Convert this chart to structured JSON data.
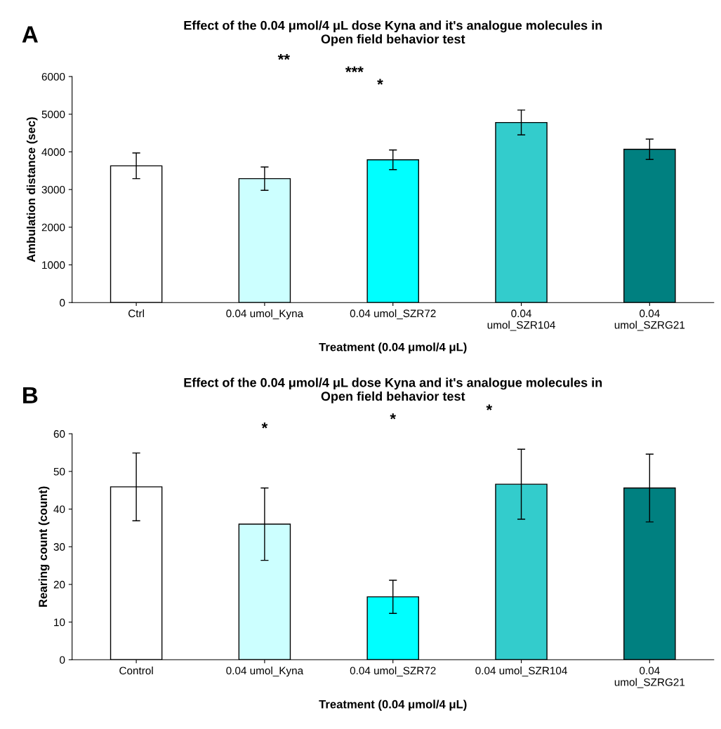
{
  "chart_data": [
    {
      "type": "bar",
      "title": "Effect of the 0.04 μmol/4 μL dose Kyna and it's analogue molecules in\nOpen field behavior test",
      "xlabel": "Treatment (0.04 μmol/4 μL)",
      "ylabel": "Ambulation distance (sec)",
      "categories": [
        "Ctrl",
        "0.04 umol_Kyna",
        "0.04 umol_SZR72",
        "0.04\numol_SZR104",
        "0.04\numol_SZRG21"
      ],
      "values": [
        3630,
        3290,
        3790,
        4780,
        4070
      ],
      "errors": [
        340,
        310,
        260,
        330,
        270
      ],
      "colors": [
        "#ffffff",
        "#ccffff",
        "#00ffff",
        "#33cccc",
        "#008080"
      ],
      "ylim": [
        0,
        6000
      ],
      "yticks": [
        0,
        1000,
        2000,
        3000,
        4000,
        5000,
        6000
      ],
      "grid": false,
      "legend": false,
      "annotations": [
        "A",
        "**",
        "***",
        "*"
      ]
    },
    {
      "type": "bar",
      "title": "Effect of the 0.04 μmol/4 μL dose Kyna and it's analogue molecules in\nOpen field behavior test",
      "xlabel": "Treatment (0.04 μmol/4 μL)",
      "ylabel": "Rearing count (count)",
      "categories": [
        "Control",
        "0.04 umol_Kyna",
        "0.04 umol_SZR72",
        "0.04 umol_SZR104",
        "0.04\numol_SZRG21"
      ],
      "values": [
        45.9,
        36.0,
        16.7,
        46.6,
        45.6
      ],
      "errors": [
        9.0,
        9.6,
        4.4,
        9.3,
        9.0
      ],
      "colors": [
        "#ffffff",
        "#ccffff",
        "#00ffff",
        "#33cccc",
        "#008080"
      ],
      "ylim": [
        0,
        60
      ],
      "yticks": [
        0,
        10,
        20,
        30,
        40,
        50,
        60
      ],
      "grid": false,
      "legend": false,
      "annotations": [
        "B",
        "*",
        "*",
        "*"
      ]
    }
  ]
}
